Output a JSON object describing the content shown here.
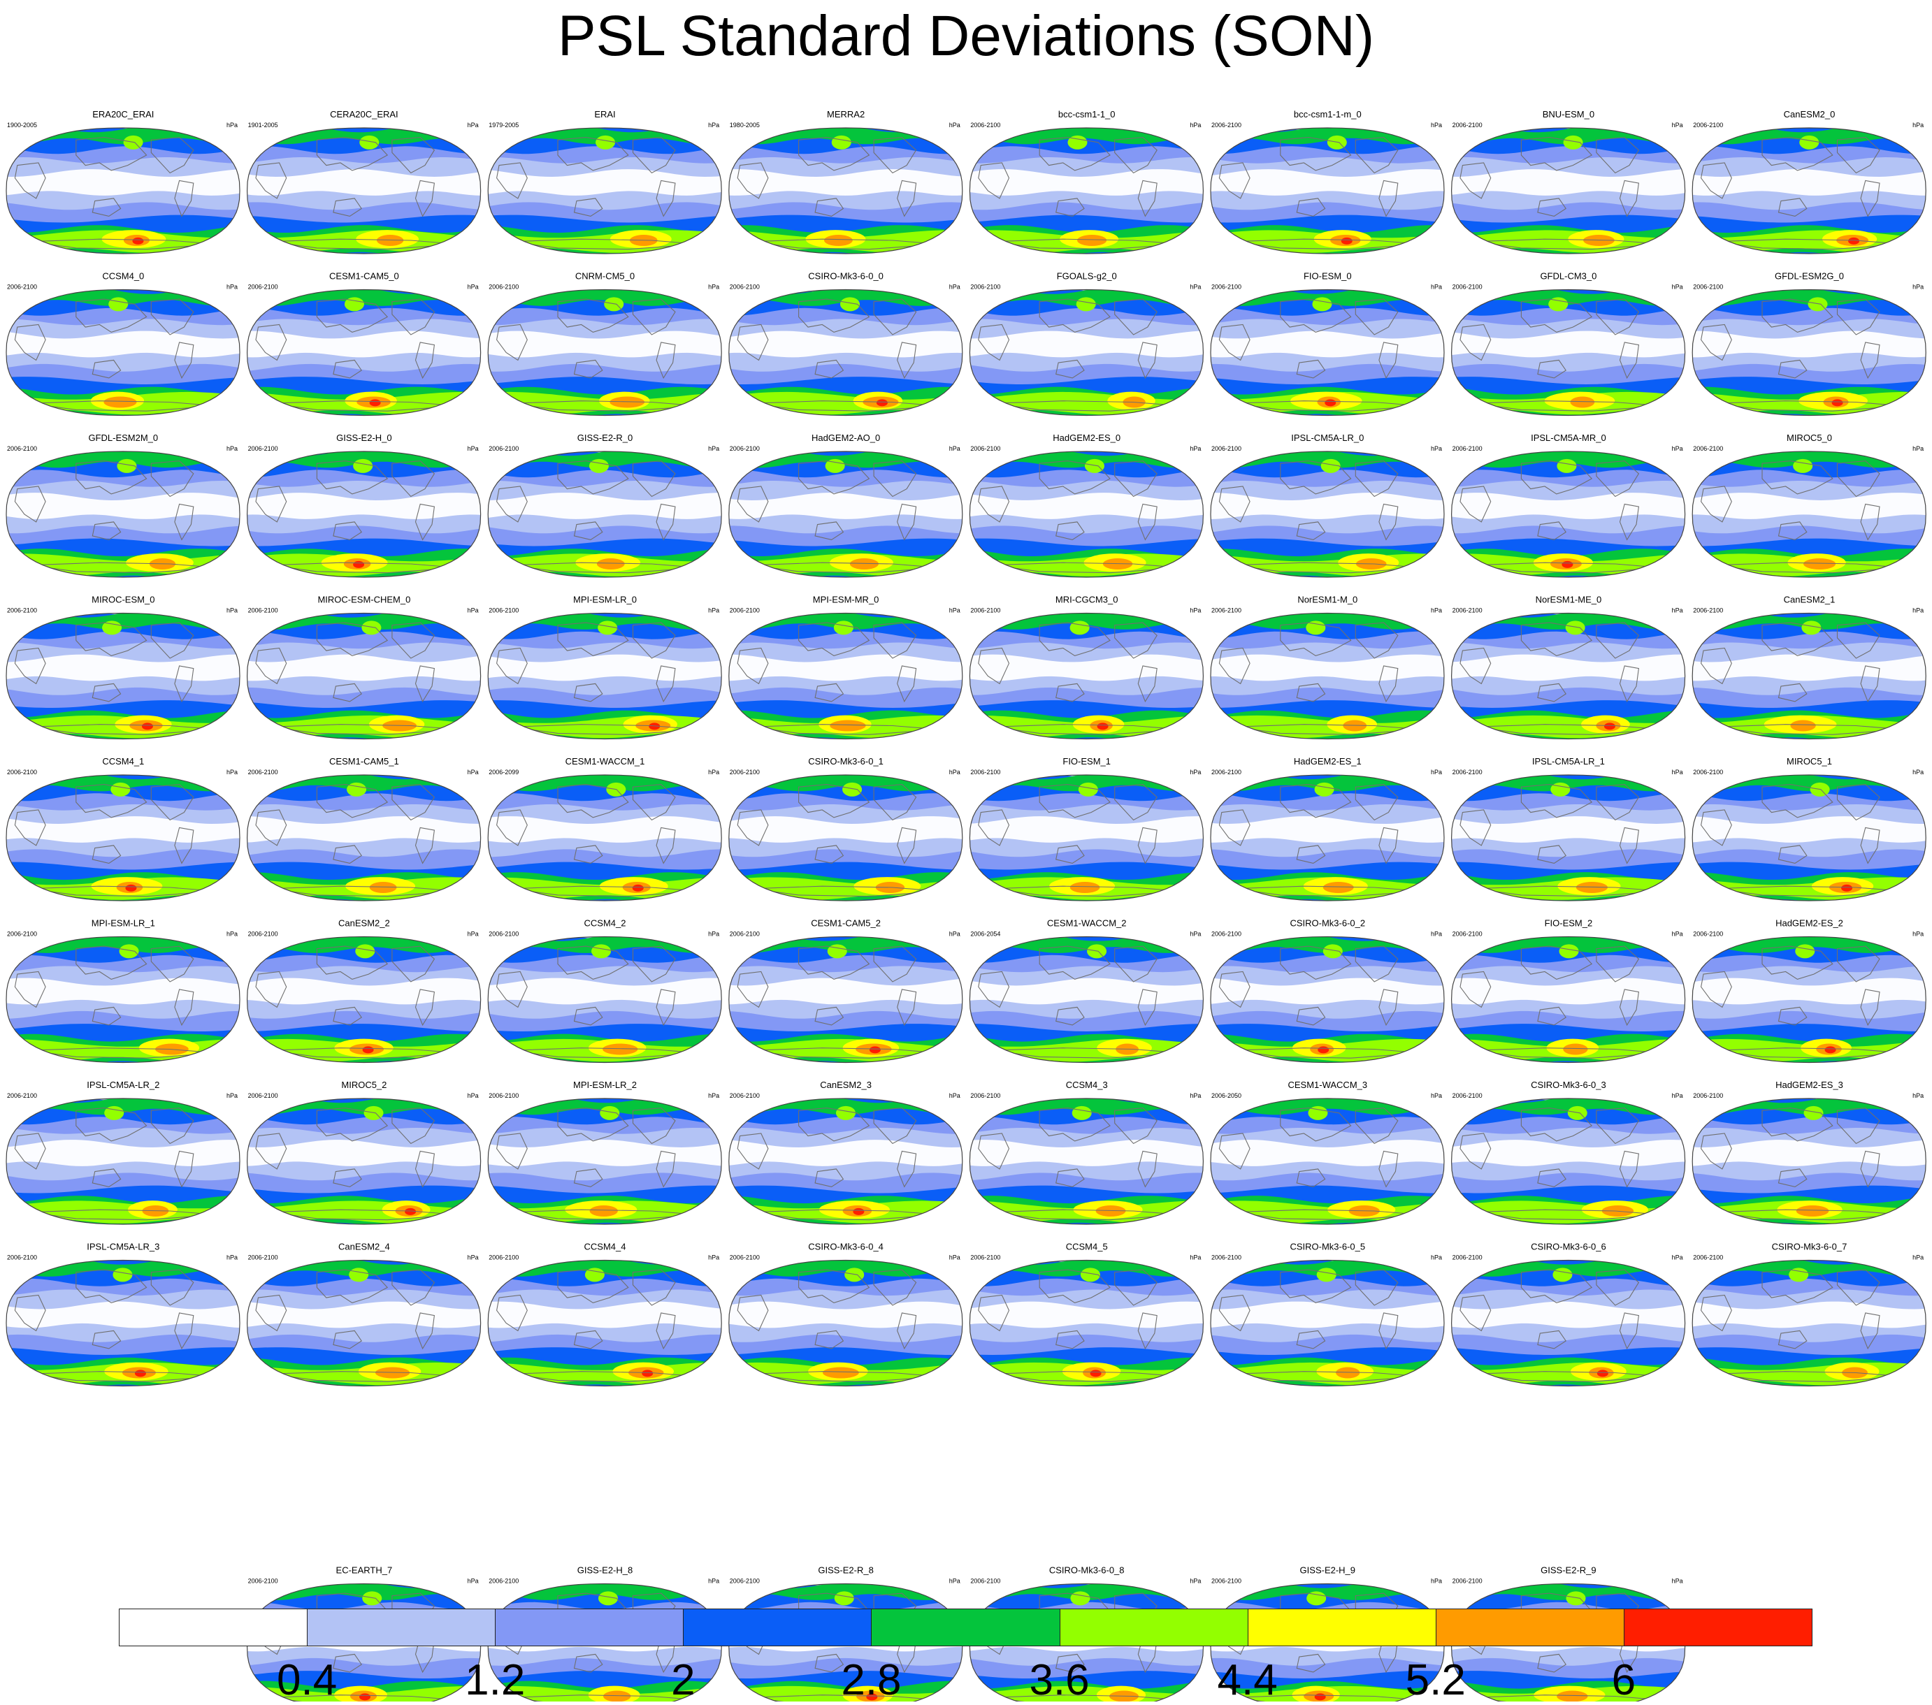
{
  "title": "PSL Standard Deviations (SON)",
  "chart_data": {
    "type": "heatmap",
    "title": "PSL Standard Deviations (SON)",
    "units": "hPa",
    "projection": "robinson",
    "colorbar": {
      "levels": [
        "0.4",
        "1.2",
        "2",
        "2.8",
        "3.6",
        "4.4",
        "5.2",
        "6"
      ],
      "colors": [
        "#ffffff",
        "#b3c3f5",
        "#8398f5",
        "#0a5ef7",
        "#04c43c",
        "#93ff00",
        "#ffff00",
        "#ff9b00",
        "#ff1e00"
      ]
    },
    "panels": [
      {
        "name": "ERA20C_ERAI",
        "years": "1900-2005",
        "units": "hPa"
      },
      {
        "name": "CERA20C_ERAI",
        "years": "1901-2005",
        "units": "hPa"
      },
      {
        "name": "ERAI",
        "years": "1979-2005",
        "units": "hPa"
      },
      {
        "name": "MERRA2",
        "years": "1980-2005",
        "units": "hPa"
      },
      {
        "name": "bcc-csm1-1_0",
        "years": "2006-2100",
        "units": "hPa"
      },
      {
        "name": "bcc-csm1-1-m_0",
        "years": "2006-2100",
        "units": "hPa"
      },
      {
        "name": "BNU-ESM_0",
        "years": "2006-2100",
        "units": "hPa"
      },
      {
        "name": "CanESM2_0",
        "years": "2006-2100",
        "units": "hPa"
      },
      {
        "name": "CCSM4_0",
        "years": "2006-2100",
        "units": "hPa"
      },
      {
        "name": "CESM1-CAM5_0",
        "years": "2006-2100",
        "units": "hPa"
      },
      {
        "name": "CNRM-CM5_0",
        "years": "2006-2100",
        "units": "hPa"
      },
      {
        "name": "CSIRO-Mk3-6-0_0",
        "years": "2006-2100",
        "units": "hPa"
      },
      {
        "name": "FGOALS-g2_0",
        "years": "2006-2100",
        "units": "hPa"
      },
      {
        "name": "FIO-ESM_0",
        "years": "2006-2100",
        "units": "hPa"
      },
      {
        "name": "GFDL-CM3_0",
        "years": "2006-2100",
        "units": "hPa"
      },
      {
        "name": "GFDL-ESM2G_0",
        "years": "2006-2100",
        "units": "hPa"
      },
      {
        "name": "GFDL-ESM2M_0",
        "years": "2006-2100",
        "units": "hPa"
      },
      {
        "name": "GISS-E2-H_0",
        "years": "2006-2100",
        "units": "hPa"
      },
      {
        "name": "GISS-E2-R_0",
        "years": "2006-2100",
        "units": "hPa"
      },
      {
        "name": "HadGEM2-AO_0",
        "years": "2006-2100",
        "units": "hPa"
      },
      {
        "name": "HadGEM2-ES_0",
        "years": "2006-2100",
        "units": "hPa"
      },
      {
        "name": "IPSL-CM5A-LR_0",
        "years": "2006-2100",
        "units": "hPa"
      },
      {
        "name": "IPSL-CM5A-MR_0",
        "years": "2006-2100",
        "units": "hPa"
      },
      {
        "name": "MIROC5_0",
        "years": "2006-2100",
        "units": "hPa"
      },
      {
        "name": "MIROC-ESM_0",
        "years": "2006-2100",
        "units": "hPa"
      },
      {
        "name": "MIROC-ESM-CHEM_0",
        "years": "2006-2100",
        "units": "hPa"
      },
      {
        "name": "MPI-ESM-LR_0",
        "years": "2006-2100",
        "units": "hPa"
      },
      {
        "name": "MPI-ESM-MR_0",
        "years": "2006-2100",
        "units": "hPa"
      },
      {
        "name": "MRI-CGCM3_0",
        "years": "2006-2100",
        "units": "hPa"
      },
      {
        "name": "NorESM1-M_0",
        "years": "2006-2100",
        "units": "hPa"
      },
      {
        "name": "NorESM1-ME_0",
        "years": "2006-2100",
        "units": "hPa"
      },
      {
        "name": "CanESM2_1",
        "years": "2006-2100",
        "units": "hPa"
      },
      {
        "name": "CCSM4_1",
        "years": "2006-2100",
        "units": "hPa"
      },
      {
        "name": "CESM1-CAM5_1",
        "years": "2006-2100",
        "units": "hPa"
      },
      {
        "name": "CESM1-WACCM_1",
        "years": "2006-2099",
        "units": "hPa"
      },
      {
        "name": "CSIRO-Mk3-6-0_1",
        "years": "2006-2100",
        "units": "hPa"
      },
      {
        "name": "FIO-ESM_1",
        "years": "2006-2100",
        "units": "hPa"
      },
      {
        "name": "HadGEM2-ES_1",
        "years": "2006-2100",
        "units": "hPa"
      },
      {
        "name": "IPSL-CM5A-LR_1",
        "years": "2006-2100",
        "units": "hPa"
      },
      {
        "name": "MIROC5_1",
        "years": "2006-2100",
        "units": "hPa"
      },
      {
        "name": "MPI-ESM-LR_1",
        "years": "2006-2100",
        "units": "hPa"
      },
      {
        "name": "CanESM2_2",
        "years": "2006-2100",
        "units": "hPa"
      },
      {
        "name": "CCSM4_2",
        "years": "2006-2100",
        "units": "hPa"
      },
      {
        "name": "CESM1-CAM5_2",
        "years": "2006-2100",
        "units": "hPa"
      },
      {
        "name": "CESM1-WACCM_2",
        "years": "2006-2054",
        "units": "hPa"
      },
      {
        "name": "CSIRO-Mk3-6-0_2",
        "years": "2006-2100",
        "units": "hPa"
      },
      {
        "name": "FIO-ESM_2",
        "years": "2006-2100",
        "units": "hPa"
      },
      {
        "name": "HadGEM2-ES_2",
        "years": "2006-2100",
        "units": "hPa"
      },
      {
        "name": "IPSL-CM5A-LR_2",
        "years": "2006-2100",
        "units": "hPa"
      },
      {
        "name": "MIROC5_2",
        "years": "2006-2100",
        "units": "hPa"
      },
      {
        "name": "MPI-ESM-LR_2",
        "years": "2006-2100",
        "units": "hPa"
      },
      {
        "name": "CanESM2_3",
        "years": "2006-2100",
        "units": "hPa"
      },
      {
        "name": "CCSM4_3",
        "years": "2006-2100",
        "units": "hPa"
      },
      {
        "name": "CESM1-WACCM_3",
        "years": "2006-2050",
        "units": "hPa"
      },
      {
        "name": "CSIRO-Mk3-6-0_3",
        "years": "2006-2100",
        "units": "hPa"
      },
      {
        "name": "HadGEM2-ES_3",
        "years": "2006-2100",
        "units": "hPa"
      },
      {
        "name": "IPSL-CM5A-LR_3",
        "years": "2006-2100",
        "units": "hPa"
      },
      {
        "name": "CanESM2_4",
        "years": "2006-2100",
        "units": "hPa"
      },
      {
        "name": "CCSM4_4",
        "years": "2006-2100",
        "units": "hPa"
      },
      {
        "name": "CSIRO-Mk3-6-0_4",
        "years": "2006-2100",
        "units": "hPa"
      },
      {
        "name": "CCSM4_5",
        "years": "2006-2100",
        "units": "hPa"
      },
      {
        "name": "CSIRO-Mk3-6-0_5",
        "years": "2006-2100",
        "units": "hPa"
      },
      {
        "name": "CSIRO-Mk3-6-0_6",
        "years": "2006-2100",
        "units": "hPa"
      },
      {
        "name": "CSIRO-Mk3-6-0_7",
        "years": "2006-2100",
        "units": "hPa"
      },
      {
        "name": "EC-EARTH_7",
        "years": "2006-2100",
        "units": "hPa"
      },
      {
        "name": "GISS-E2-H_8",
        "years": "2006-2100",
        "units": "hPa"
      },
      {
        "name": "GISS-E2-R_8",
        "years": "2006-2100",
        "units": "hPa"
      },
      {
        "name": "CSIRO-Mk3-6-0_8",
        "years": "2006-2100",
        "units": "hPa"
      },
      {
        "name": "GISS-E2-H_9",
        "years": "2006-2100",
        "units": "hPa"
      },
      {
        "name": "GISS-E2-R_9",
        "years": "2006-2100",
        "units": "hPa"
      }
    ]
  }
}
